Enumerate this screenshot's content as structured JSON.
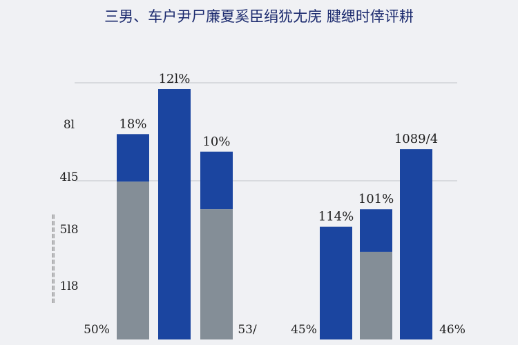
{
  "chart_data": {
    "type": "bar",
    "stacked": true,
    "title": "三男、车户尹尸廉夏奚臣绢犹尢庑 腱缌时倖评耕",
    "ylabel": "",
    "side_label": "==============",
    "y_ticks": [
      "8l",
      "4l5",
      "5l8",
      "1l8"
    ],
    "bottom_labels": [
      "50%",
      "53/",
      "45%",
      "46%"
    ],
    "grid": true,
    "legend": "none",
    "colors": {
      "blue": "#1b45a0",
      "gray": "#848e97",
      "grid": "#c9ccd1"
    },
    "bars": [
      {
        "top_label": "18%",
        "total": 82,
        "lower": 63
      },
      {
        "top_label": "12l%",
        "total": 100,
        "lower": 0
      },
      {
        "top_label": "10%",
        "total": 75,
        "lower": 52
      },
      {
        "top_label": "114%",
        "total": 45,
        "lower": 0
      },
      {
        "top_label": "101%",
        "total": 52,
        "lower": 35
      },
      {
        "top_label": "1089/4",
        "total": 76,
        "lower": 0
      }
    ]
  }
}
